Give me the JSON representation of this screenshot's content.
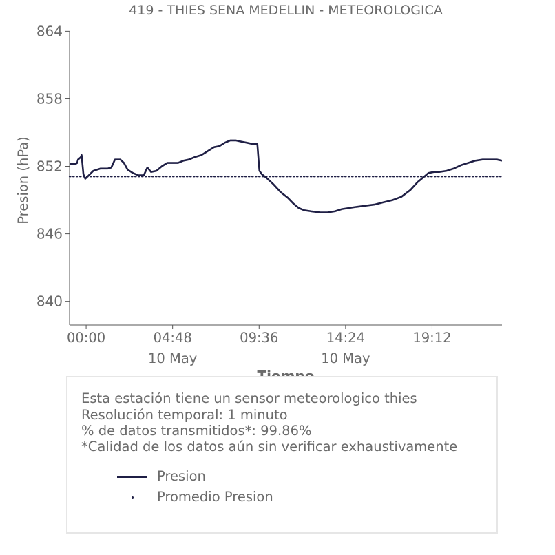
{
  "chart_data": {
    "type": "line",
    "title": "419 - THIES SENA MEDELLIN - METEOROLOGICA",
    "xlabel": "Tiempo",
    "ylabel": "Presion (hPa)",
    "ylim": [
      837.9,
      863.9
    ],
    "y_ticks": [
      "864",
      "858",
      "852",
      "846",
      "840"
    ],
    "y_tick_values": [
      864,
      858,
      852,
      846,
      840
    ],
    "xlim_hours": [
      -0.92,
      23.08
    ],
    "x_ticks": [
      {
        "hour": 0.0,
        "label": "00:00",
        "sublabel": ""
      },
      {
        "hour": 4.8,
        "label": "04:48",
        "sublabel": "10 May"
      },
      {
        "hour": 9.6,
        "label": "09:36",
        "sublabel": ""
      },
      {
        "hour": 14.4,
        "label": "14:24",
        "sublabel": "10 May"
      },
      {
        "hour": 19.2,
        "label": "19:12",
        "sublabel": ""
      }
    ],
    "series": [
      {
        "name": "Presion",
        "color": "#1f1f45",
        "style": "solid",
        "x": [
          -0.92,
          -0.5,
          0.0,
          -0.45,
          -0.38,
          -0.3,
          -0.25,
          -0.15,
          -0.05,
          0.15,
          0.4,
          0.8,
          1.2,
          1.4,
          1.6,
          1.9,
          2.1,
          2.3,
          2.6,
          2.9,
          3.2,
          3.4,
          3.6,
          3.9,
          4.2,
          4.5,
          4.8,
          5.1,
          5.4,
          5.7,
          6.0,
          6.4,
          6.8,
          7.1,
          7.4,
          7.7,
          8.0,
          8.3,
          8.6,
          8.9,
          9.2,
          9.5,
          9.58,
          9.62,
          9.75,
          10.0,
          10.4,
          10.8,
          11.2,
          11.5,
          11.8,
          12.1,
          12.5,
          13.0,
          13.4,
          13.8,
          14.2,
          14.6,
          15.0,
          15.5,
          16.0,
          16.5,
          17.0,
          17.5,
          18.0,
          18.4,
          18.7,
          19.0,
          19.3,
          19.6,
          20.0,
          20.4,
          20.8,
          21.2,
          21.6,
          22.0,
          22.4,
          22.8,
          23.08
        ],
        "y_note": "index 1..3 placeholders replaced in script",
        "values": [
          852.2,
          852.2,
          852.3,
          852.6,
          852.7,
          852.8,
          853.0,
          851.3,
          850.9,
          851.2,
          851.6,
          851.8,
          851.8,
          851.9,
          852.6,
          852.6,
          852.3,
          851.7,
          851.4,
          851.2,
          851.2,
          851.9,
          851.5,
          851.6,
          852.0,
          852.3,
          852.3,
          852.3,
          852.5,
          852.6,
          852.8,
          853.0,
          853.4,
          853.7,
          853.8,
          854.1,
          854.3,
          854.3,
          854.2,
          854.1,
          854.0,
          854.0,
          852.3,
          851.6,
          851.3,
          851.0,
          850.4,
          849.7,
          849.2,
          848.7,
          848.3,
          848.1,
          848.0,
          847.9,
          847.9,
          848.0,
          848.2,
          848.3,
          848.4,
          848.5,
          848.6,
          848.8,
          849.0,
          849.3,
          849.9,
          850.6,
          851.0,
          851.4,
          851.5,
          851.5,
          851.6,
          851.8,
          852.1,
          852.3,
          852.5,
          852.6,
          852.6,
          852.6,
          852.5
        ]
      },
      {
        "name": "Promedio Presion",
        "color": "#1f1f45",
        "style": "dotted",
        "values": [
          851.1
        ]
      }
    ],
    "legend": [
      {
        "label": "Presion",
        "marker": "line"
      },
      {
        "label": "Promedio Presion",
        "marker": "dot"
      }
    ]
  },
  "info": {
    "lines": [
      "Esta estación tiene un sensor meteorologico thies",
      "Resolución temporal: 1 minuto",
      "% de datos transmitidos*: 99.86%",
      "*Calidad de los datos aún sin verificar exhaustivamente"
    ]
  }
}
